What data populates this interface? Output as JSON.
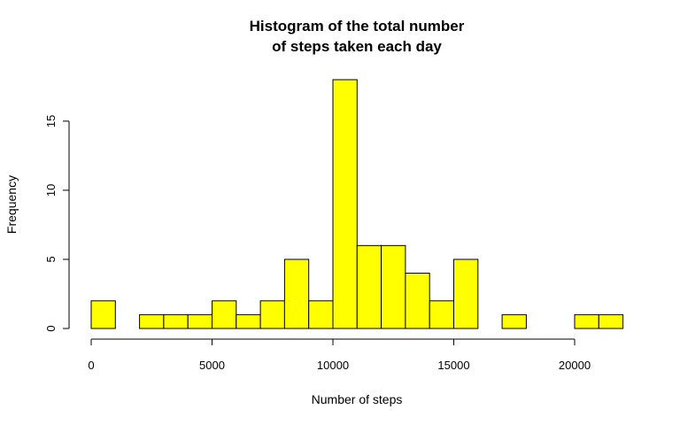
{
  "chart_data": {
    "type": "bar",
    "title_lines": [
      "Histogram of the total number",
      "of steps taken each day"
    ],
    "xlabel": "Number of steps",
    "ylabel": "Frequency",
    "bin_width": 1000,
    "bins": [
      {
        "start": 0,
        "end": 1000,
        "count": 2
      },
      {
        "start": 1000,
        "end": 2000,
        "count": 0
      },
      {
        "start": 2000,
        "end": 3000,
        "count": 1
      },
      {
        "start": 3000,
        "end": 4000,
        "count": 1
      },
      {
        "start": 4000,
        "end": 5000,
        "count": 1
      },
      {
        "start": 5000,
        "end": 6000,
        "count": 2
      },
      {
        "start": 6000,
        "end": 7000,
        "count": 1
      },
      {
        "start": 7000,
        "end": 8000,
        "count": 2
      },
      {
        "start": 8000,
        "end": 9000,
        "count": 5
      },
      {
        "start": 9000,
        "end": 10000,
        "count": 2
      },
      {
        "start": 10000,
        "end": 11000,
        "count": 18
      },
      {
        "start": 11000,
        "end": 12000,
        "count": 6
      },
      {
        "start": 12000,
        "end": 13000,
        "count": 6
      },
      {
        "start": 13000,
        "end": 14000,
        "count": 4
      },
      {
        "start": 14000,
        "end": 15000,
        "count": 2
      },
      {
        "start": 15000,
        "end": 16000,
        "count": 5
      },
      {
        "start": 16000,
        "end": 17000,
        "count": 0
      },
      {
        "start": 17000,
        "end": 18000,
        "count": 1
      },
      {
        "start": 18000,
        "end": 19000,
        "count": 0
      },
      {
        "start": 19000,
        "end": 20000,
        "count": 0
      },
      {
        "start": 20000,
        "end": 21000,
        "count": 1
      },
      {
        "start": 21000,
        "end": 22000,
        "count": 1
      }
    ],
    "x_ticks": [
      0,
      5000,
      10000,
      15000,
      20000
    ],
    "y_ticks": [
      0,
      5,
      10,
      15
    ],
    "xlim": [
      0,
      22000
    ],
    "ylim": [
      0,
      18
    ],
    "bar_color": "#ffff00",
    "bar_edge_color": "#000000",
    "grid": false,
    "legend": "none"
  }
}
